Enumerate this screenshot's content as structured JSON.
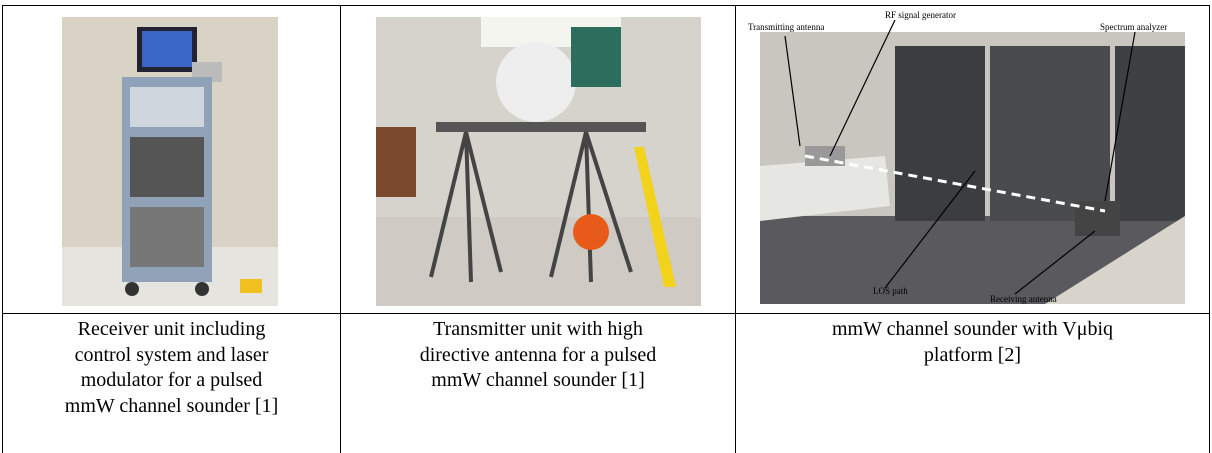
{
  "table": {
    "rows": [
      [
        {
          "caption_lines": [
            "Receiver unit including",
            "control system and laser",
            "modulator for a pulsed",
            "mmW channel sounder [1]"
          ]
        },
        {
          "caption_lines": [
            "Transmitter unit with high",
            "directive antenna for a pulsed",
            "mmW channel sounder [1]"
          ]
        },
        {
          "image_labels": [
            "Transmitting antenna",
            "RF signal generator",
            "Spectrum analyzer",
            "LOS path",
            "Receiving antenna"
          ],
          "caption_lines": [
            "mmW channel sounder with Vμbiq",
            "platform [2]"
          ]
        }
      ]
    ]
  }
}
